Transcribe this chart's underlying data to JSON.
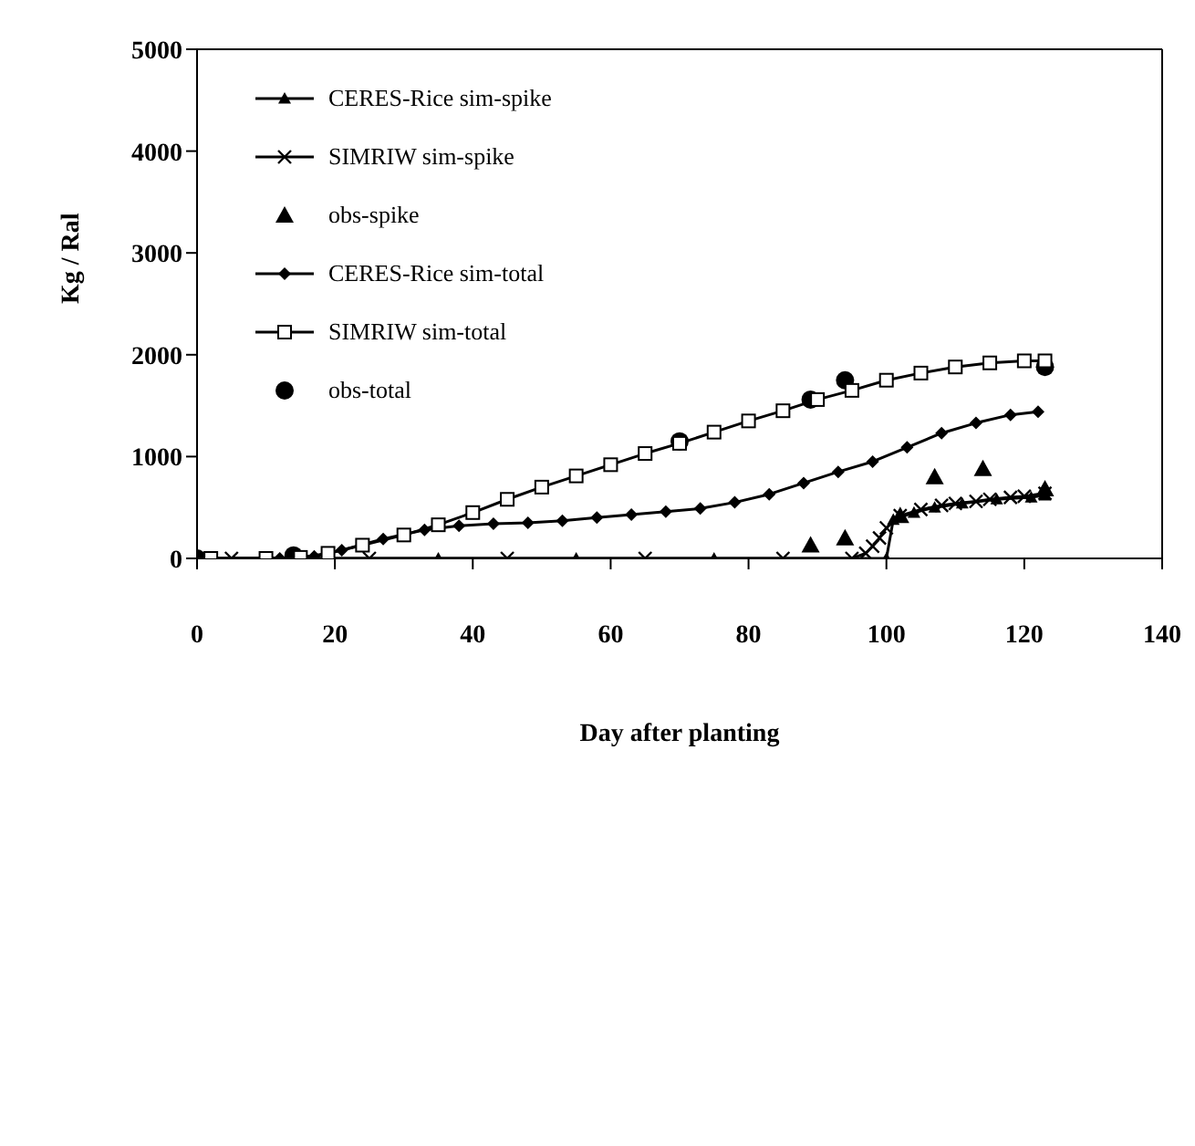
{
  "chart_data": {
    "type": "line",
    "xlabel": "Day after planting",
    "ylabel": "Kg / Ral",
    "xlim": [
      0,
      140
    ],
    "xticks": [
      0,
      20,
      40,
      60,
      80,
      100,
      120,
      140
    ],
    "ylim": [
      0,
      5000
    ],
    "yticks": [
      0,
      1000,
      2000,
      3000,
      4000,
      5000
    ],
    "grid": false,
    "legend": "top left",
    "line_style": "solid",
    "series": [
      {
        "name": "CERES-Rice sim-spike",
        "marker": "triangle",
        "color": "#000000",
        "x": [
          1,
          15,
          35,
          55,
          75,
          100,
          101,
          104,
          107,
          111,
          116,
          121,
          123
        ],
        "values": [
          0,
          0,
          0,
          0,
          0,
          0,
          380,
          450,
          500,
          540,
          580,
          600,
          620
        ]
      },
      {
        "name": "SIMRIW sim-spike",
        "marker": "cross",
        "color": "#000000",
        "x": [
          5,
          25,
          45,
          65,
          85,
          95,
          97,
          98,
          99,
          100,
          102,
          105,
          108,
          110,
          113,
          115,
          118,
          120,
          123
        ],
        "values": [
          0,
          0,
          0,
          0,
          0,
          0,
          50,
          120,
          200,
          300,
          420,
          480,
          520,
          540,
          560,
          580,
          600,
          610,
          640
        ]
      },
      {
        "name": "obs-spike",
        "type": "scatter",
        "marker": "triangle",
        "color": "#000000",
        "x": [
          89,
          94,
          102,
          107,
          114,
          123
        ],
        "values": [
          130,
          200,
          420,
          800,
          880,
          680
        ]
      },
      {
        "name": "CERES-Rice sim-total",
        "marker": "diamond",
        "color": "#000000",
        "x": [
          0,
          12,
          17,
          21,
          27,
          33,
          38,
          43,
          48,
          53,
          58,
          63,
          68,
          73,
          78,
          83,
          88,
          93,
          98,
          103,
          108,
          113,
          118,
          122
        ],
        "values": [
          0,
          0,
          20,
          80,
          190,
          280,
          320,
          340,
          350,
          370,
          400,
          430,
          460,
          490,
          550,
          630,
          740,
          850,
          950,
          1090,
          1230,
          1330,
          1410,
          1440
        ]
      },
      {
        "name": "SIMRIW sim-total",
        "marker": "square",
        "color": "#000000",
        "x": [
          2,
          10,
          15,
          19,
          24,
          30,
          35,
          40,
          45,
          50,
          55,
          60,
          65,
          70,
          75,
          80,
          85,
          90,
          95,
          100,
          105,
          110,
          115,
          120,
          123
        ],
        "values": [
          0,
          0,
          10,
          50,
          130,
          230,
          330,
          450,
          580,
          700,
          810,
          920,
          1030,
          1130,
          1240,
          1350,
          1450,
          1560,
          1650,
          1750,
          1820,
          1880,
          1920,
          1940,
          1940
        ]
      },
      {
        "name": "obs-total",
        "type": "scatter",
        "marker": "circle",
        "color": "#000000",
        "x": [
          0,
          14,
          70,
          89,
          94,
          123
        ],
        "values": [
          0,
          30,
          1150,
          1560,
          1750,
          1880
        ]
      }
    ]
  }
}
